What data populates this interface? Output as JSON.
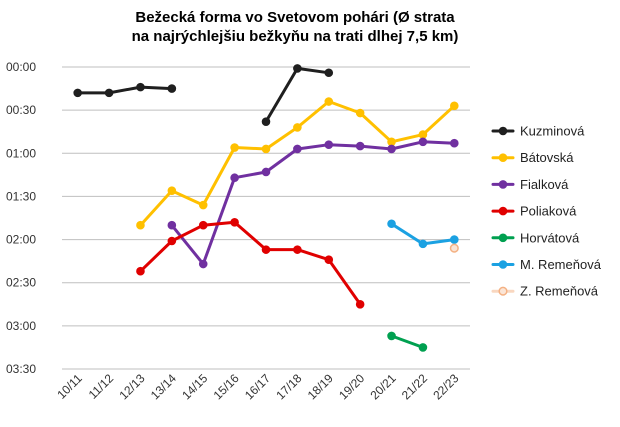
{
  "chart_data": {
    "type": "line",
    "title_line1": "Bežecká forma vo Svetovom pohári (Ø strata",
    "title_line2": "na najrýchlejšiu bežkyňu na trati dlhej 7,5 km)",
    "categories": [
      "10/11",
      "11/12",
      "12/13",
      "13/14",
      "14/15",
      "15/16",
      "16/17",
      "17/18",
      "18/19",
      "19/20",
      "20/21",
      "21/22",
      "22/23"
    ],
    "y_unit": "seconds",
    "ylim": [
      0,
      210
    ],
    "y_reversed": true,
    "y_ticks": [
      {
        "value": 0,
        "label": "00:00"
      },
      {
        "value": 30,
        "label": "00:30"
      },
      {
        "value": 60,
        "label": "01:00"
      },
      {
        "value": 90,
        "label": "01:30"
      },
      {
        "value": 120,
        "label": "02:00"
      },
      {
        "value": 150,
        "label": "02:30"
      },
      {
        "value": 180,
        "label": "03:00"
      },
      {
        "value": 210,
        "label": "03:30"
      }
    ],
    "grid": true,
    "legend_position": "right",
    "series": [
      {
        "name": "Kuzminová",
        "color": "#1f1f1f",
        "marker": "filled",
        "values": [
          18,
          18,
          14,
          15,
          null,
          null,
          38,
          1,
          4,
          null,
          null,
          null,
          null
        ]
      },
      {
        "name": "Bátovská",
        "color": "#ffc000",
        "marker": "filled",
        "values": [
          null,
          null,
          110,
          86,
          96,
          56,
          57,
          42,
          24,
          32,
          52,
          47,
          27
        ]
      },
      {
        "name": "Fialková",
        "color": "#7030a0",
        "marker": "filled",
        "values": [
          null,
          null,
          null,
          110,
          137,
          77,
          73,
          57,
          54,
          55,
          57,
          52,
          53
        ]
      },
      {
        "name": "Poliaková",
        "color": "#e00000",
        "marker": "filled",
        "values": [
          null,
          null,
          142,
          121,
          110,
          108,
          127,
          127,
          134,
          165,
          null,
          null,
          null
        ]
      },
      {
        "name": "Horvátová",
        "color": "#00a050",
        "marker": "filled",
        "values": [
          null,
          null,
          null,
          null,
          null,
          null,
          null,
          null,
          null,
          null,
          187,
          195,
          null
        ]
      },
      {
        "name": "M. Remeňová",
        "color": "#1ba1e2",
        "marker": "filled",
        "values": [
          null,
          null,
          null,
          null,
          null,
          null,
          null,
          null,
          null,
          null,
          109,
          123,
          120
        ]
      },
      {
        "name": "Z. Remeňová",
        "color": "#f4b183",
        "marker": "hollow",
        "values": [
          null,
          null,
          null,
          null,
          null,
          null,
          null,
          null,
          null,
          null,
          null,
          null,
          126
        ]
      }
    ]
  }
}
